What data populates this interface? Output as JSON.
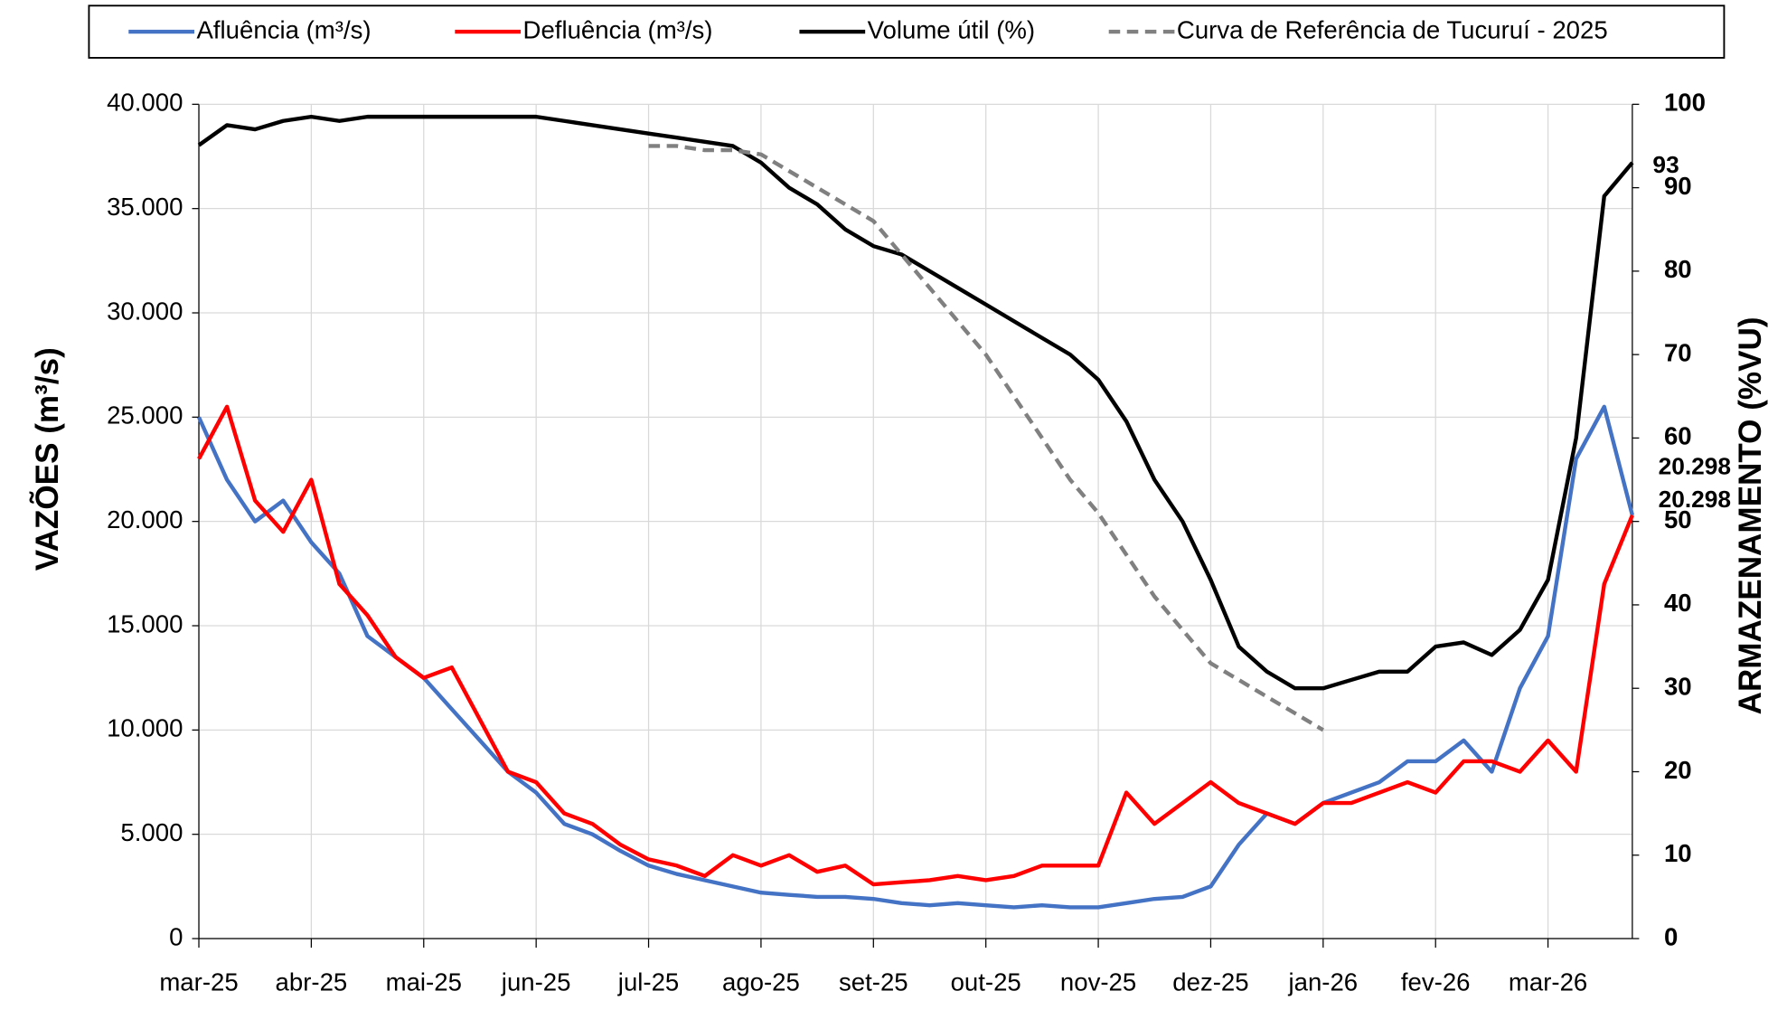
{
  "chart_data": {
    "type": "line",
    "categories": [
      "mar-25",
      null,
      null,
      null,
      "abr-25",
      null,
      null,
      null,
      "mai-25",
      null,
      null,
      null,
      "jun-25",
      null,
      null,
      null,
      "jul-25",
      null,
      null,
      null,
      "ago-25",
      null,
      null,
      null,
      "set-25",
      null,
      null,
      null,
      "out-25",
      null,
      null,
      null,
      "nov-25",
      null,
      null,
      null,
      "dez-25",
      null,
      null,
      null,
      "jan-26",
      null,
      null,
      null,
      "fev-26",
      null,
      null,
      null,
      "mar-26",
      null,
      null,
      null
    ],
    "y_label": "VAZÕES (m³/s)",
    "y2_label": "ARMAZENAMENTO (%VU)",
    "ylim": [
      0,
      40000
    ],
    "yticks": [
      0,
      {
        "value": 5000,
        "label": "5.000"
      },
      {
        "value": 10000,
        "label": "10.000"
      },
      {
        "value": 15000,
        "label": "15.000"
      },
      {
        "value": 20000,
        "label": "20.000"
      },
      {
        "value": 25000,
        "label": "25.000"
      },
      {
        "value": 30000,
        "label": "30.000"
      },
      {
        "value": 35000,
        "label": "35.000"
      },
      {
        "value": 40000,
        "label": "40.000"
      }
    ],
    "y2lim": [
      0,
      100
    ],
    "y2ticks": [
      0,
      10,
      20,
      30,
      40,
      50,
      60,
      70,
      80,
      90,
      100
    ],
    "grid": true,
    "legend": "top",
    "series": [
      {
        "name": "Afluência (m³/s)",
        "color": "#4472c4",
        "values": [
          25000,
          22000,
          20000,
          21000,
          19000,
          17500,
          14500,
          13500,
          12500,
          11000,
          9500,
          8000,
          7000,
          5500,
          5000,
          4200,
          3500,
          3100,
          2800,
          2500,
          2200,
          2100,
          2000,
          2000,
          1900,
          1700,
          1600,
          1700,
          1600,
          1500,
          1600,
          1500,
          1500,
          1700,
          1900,
          2000,
          2500,
          4500,
          6000,
          5500,
          6500,
          7000,
          7500,
          8500,
          8500,
          9500,
          8000,
          12000,
          14500,
          23000,
          25500,
          20298
        ],
        "end_label": "20.298"
      },
      {
        "name": "Defluência (m³/s)",
        "color": "#ff0000",
        "values": [
          23000,
          25500,
          21000,
          19500,
          22000,
          17000,
          15500,
          13500,
          12500,
          13000,
          10500,
          8000,
          7500,
          6000,
          5500,
          4500,
          3800,
          3500,
          3000,
          4000,
          3500,
          4000,
          3200,
          3500,
          2600,
          2700,
          2800,
          3000,
          2800,
          3000,
          3500,
          3500,
          3500,
          7000,
          5500,
          6500,
          7500,
          6500,
          6000,
          5500,
          6500,
          6500,
          7000,
          7500,
          7000,
          8500,
          8500,
          8000,
          9500,
          8000,
          17000,
          20298
        ],
        "end_label": "20.298"
      },
      {
        "name": "Volume útil (%)",
        "color": "#000000",
        "axis": "y2",
        "values": [
          95.1,
          97.5,
          97,
          98,
          98.5,
          98,
          98.5,
          98.5,
          98.5,
          98.5,
          98.5,
          98.5,
          98.5,
          98,
          97.5,
          97,
          96.5,
          96,
          95.5,
          95,
          93,
          90,
          88,
          85,
          83,
          82,
          80,
          78,
          76,
          74,
          72,
          70,
          67,
          62,
          55,
          50,
          43,
          35,
          32,
          30,
          30,
          31,
          32,
          32,
          35,
          35.5,
          34,
          37,
          43,
          60,
          89,
          93
        ],
        "end_label": "93"
      },
      {
        "name": "Curva de Referência de Tucuruí - 2025",
        "color": "#808080",
        "axis": "y2",
        "dashed": true,
        "values": [
          null,
          null,
          null,
          null,
          null,
          null,
          null,
          null,
          null,
          null,
          null,
          null,
          null,
          null,
          null,
          null,
          95,
          95,
          94.5,
          94.5,
          94,
          92,
          90,
          88,
          86,
          82,
          78,
          74,
          70,
          65,
          60,
          55,
          51,
          46,
          41,
          37,
          33,
          31,
          29,
          27,
          25,
          null,
          null,
          null,
          null,
          null,
          null,
          null,
          null,
          null,
          null,
          null
        ]
      }
    ]
  }
}
